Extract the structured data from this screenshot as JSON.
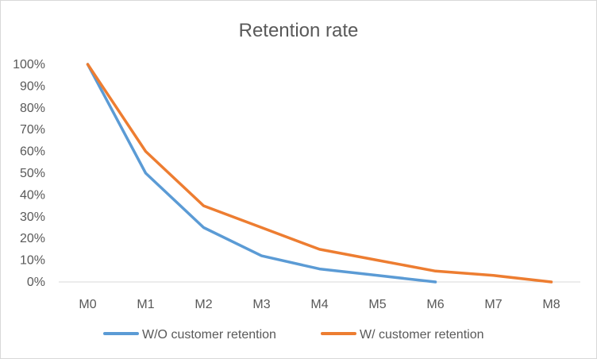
{
  "chart_data": {
    "type": "line",
    "title": "Retention rate",
    "xlabel": "",
    "ylabel": "",
    "categories": [
      "M0",
      "M1",
      "M2",
      "M3",
      "M4",
      "M5",
      "M6",
      "M7",
      "M8"
    ],
    "ylim": [
      0,
      100
    ],
    "y_ticks": [
      0,
      10,
      20,
      30,
      40,
      50,
      60,
      70,
      80,
      90,
      100
    ],
    "y_tick_labels": [
      "0%",
      "10%",
      "20%",
      "30%",
      "40%",
      "50%",
      "60%",
      "70%",
      "80%",
      "90%",
      "100%"
    ],
    "grid": false,
    "legend_position": "bottom",
    "series": [
      {
        "name": "W/O customer retention",
        "color": "#5b9bd5",
        "values": [
          100,
          50,
          25,
          12,
          6,
          3,
          0,
          null,
          null
        ]
      },
      {
        "name": "W/ customer retention",
        "color": "#ed7d31",
        "values": [
          100,
          60,
          35,
          25,
          15,
          10,
          5,
          3,
          0
        ]
      }
    ]
  }
}
